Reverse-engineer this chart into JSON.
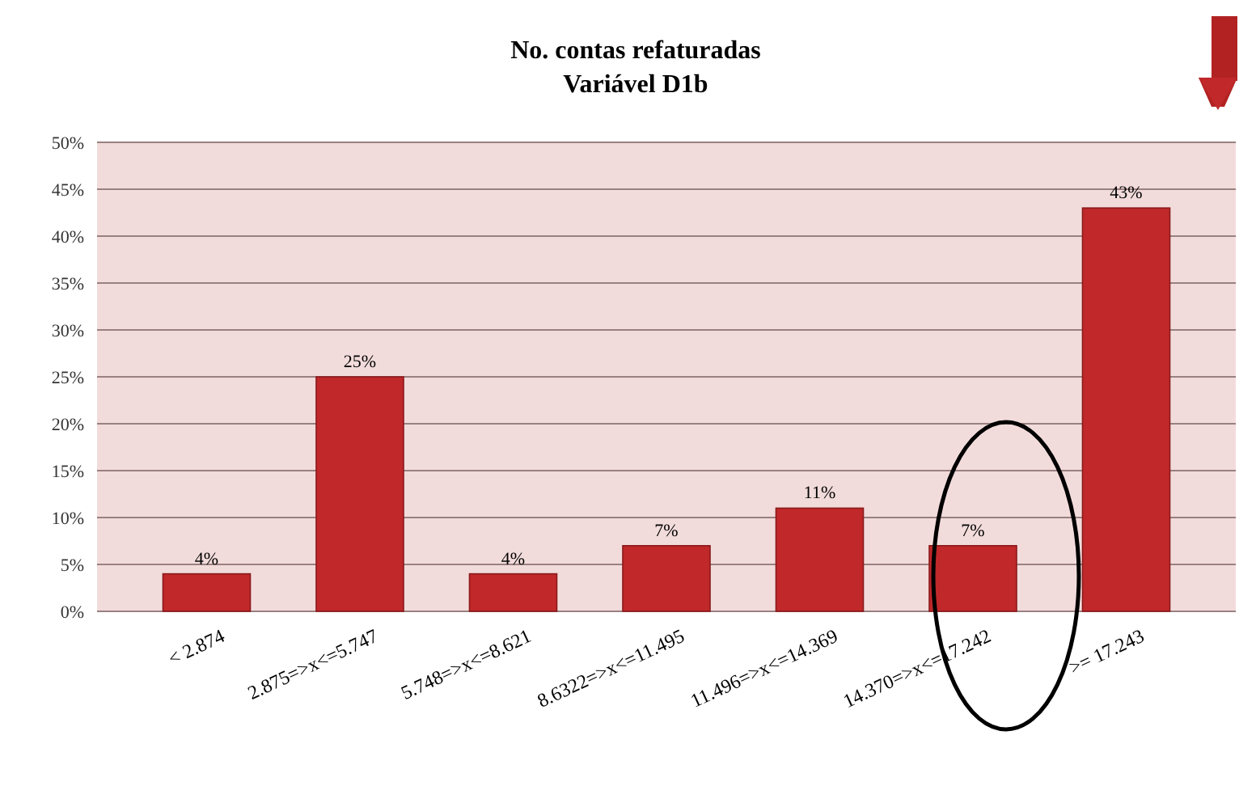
{
  "chart_data": {
    "type": "bar",
    "title": "No. contas refaturadas\nVariável D1b",
    "categories": [
      "< 2.874",
      "2.875=>x<=5.747",
      "5.748=>x<=8.621",
      "8.6322=>x<=11.495",
      "11.496=>x<=14.369",
      "14.370=>x<=17.242",
      ">= 17.243"
    ],
    "values": [
      4,
      25,
      4,
      7,
      11,
      7,
      43
    ],
    "color": "#c0282a",
    "value_labels": [
      "4%",
      "25%",
      "4%",
      "7%",
      "11%",
      "7%",
      "43%"
    ],
    "ylim": [
      0,
      50
    ],
    "yticks": [
      {
        "value": 0,
        "label": "0%"
      },
      {
        "value": 5,
        "label": "5%"
      },
      {
        "value": 10,
        "label": "10%"
      },
      {
        "value": 15,
        "label": "15%"
      },
      {
        "value": 20,
        "label": "20%"
      },
      {
        "value": 25,
        "label": "25%"
      },
      {
        "value": 30,
        "label": "30%"
      },
      {
        "value": 35,
        "label": "35%"
      },
      {
        "value": 40,
        "label": "40%"
      },
      {
        "value": 45,
        "label": "45%"
      },
      {
        "value": 50,
        "label": "50%"
      }
    ],
    "grid": "y"
  }
}
